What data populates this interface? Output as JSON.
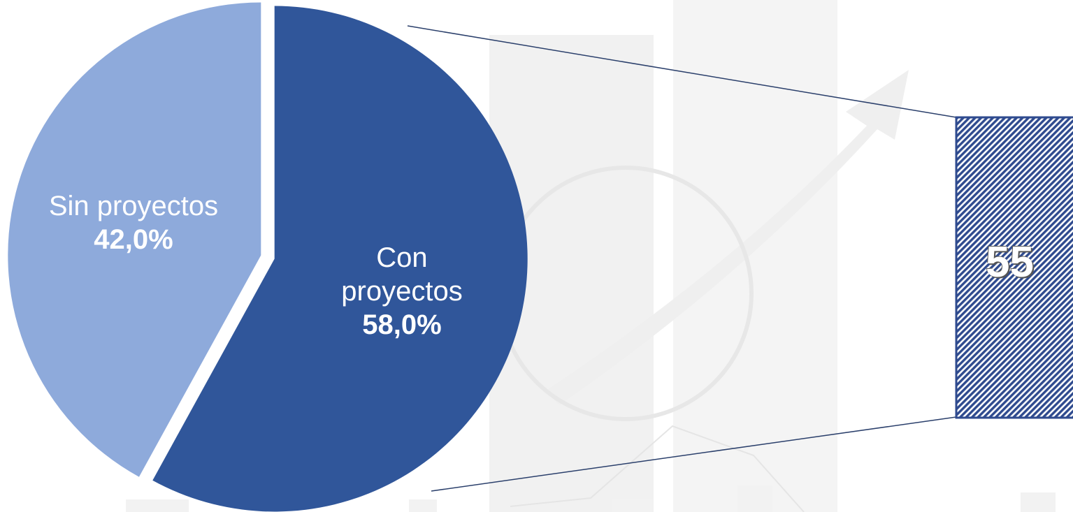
{
  "chart_data": [
    {
      "type": "pie",
      "categories": [
        "Con proyectos",
        "Sin proyectos"
      ],
      "values": [
        58.0,
        42.0
      ],
      "value_labels": [
        "58,0%",
        "42,0%"
      ],
      "colors": [
        "#30569a",
        "#8eaadb"
      ]
    },
    {
      "type": "bar",
      "values": [
        55
      ],
      "color": "#2f4b8f"
    }
  ]
}
